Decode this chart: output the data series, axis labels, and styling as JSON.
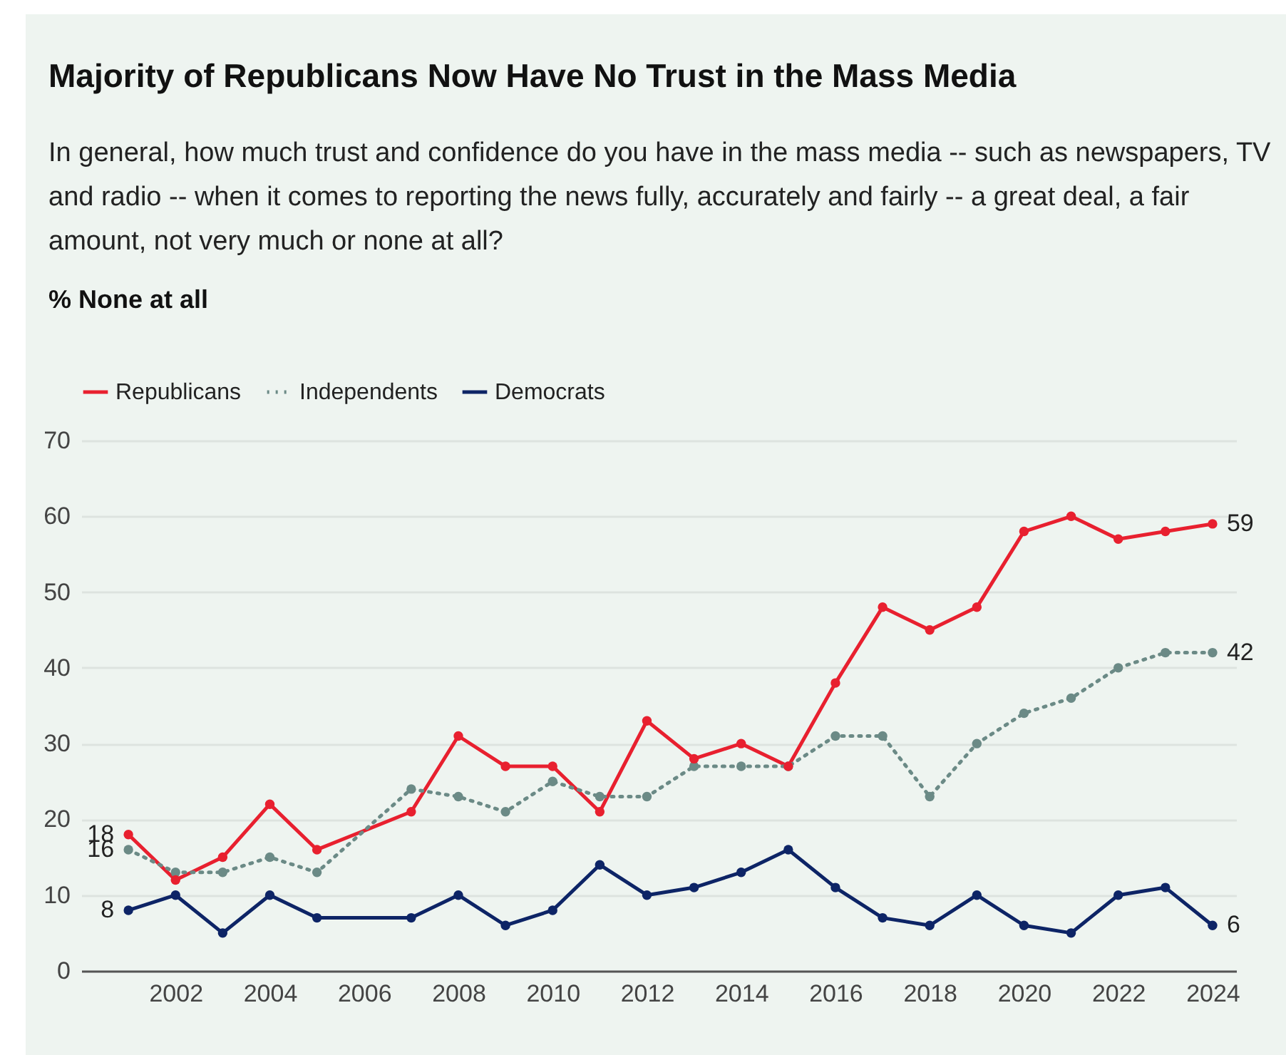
{
  "chart_data": {
    "type": "line",
    "title": "Majority of Republicans Now Have No Trust in the Mass Media",
    "subtitle": "In general, how much trust and confidence do you have in the mass media -- such as newspapers, TV and radio -- when it comes to reporting the news fully, accurately and fairly -- a great deal, a fair amount, not very much or none at all?",
    "ylabel": "% None at all",
    "x": [
      2001,
      2002,
      2003,
      2004,
      2005,
      2007,
      2008,
      2009,
      2010,
      2011,
      2012,
      2013,
      2014,
      2015,
      2016,
      2017,
      2018,
      2019,
      2020,
      2021,
      2022,
      2023,
      2024
    ],
    "series": [
      {
        "name": "Republicans",
        "color": "#e8202f",
        "line_style": "solid",
        "values": [
          18,
          12,
          15,
          22,
          16,
          21,
          31,
          27,
          27,
          21,
          33,
          28,
          30,
          27,
          38,
          48,
          45,
          48,
          58,
          60,
          57,
          58,
          59
        ],
        "value_labels": [
          "18",
          null,
          null,
          null,
          null,
          null,
          null,
          null,
          null,
          null,
          null,
          null,
          null,
          null,
          null,
          null,
          null,
          null,
          null,
          null,
          null,
          null,
          "59"
        ]
      },
      {
        "name": "Independents",
        "color": "#6b8a86",
        "line_style": "dotted",
        "values": [
          16,
          13,
          13,
          15,
          13,
          24,
          23,
          21,
          25,
          23,
          23,
          27,
          27,
          27,
          31,
          31,
          23,
          30,
          34,
          36,
          40,
          42,
          42
        ],
        "value_labels": [
          "16",
          null,
          null,
          null,
          null,
          null,
          null,
          null,
          null,
          null,
          null,
          null,
          null,
          null,
          null,
          null,
          null,
          null,
          null,
          null,
          null,
          null,
          "42"
        ]
      },
      {
        "name": "Democrats",
        "color": "#0d2466",
        "line_style": "solid",
        "values": [
          8,
          10,
          5,
          10,
          7,
          7,
          10,
          6,
          8,
          14,
          10,
          11,
          13,
          16,
          11,
          7,
          6,
          10,
          6,
          5,
          10,
          11,
          6
        ],
        "value_labels": [
          "8",
          null,
          null,
          null,
          null,
          null,
          null,
          null,
          null,
          null,
          null,
          null,
          null,
          null,
          null,
          null,
          null,
          null,
          null,
          null,
          null,
          null,
          "6"
        ]
      }
    ],
    "xlim": [
      2000,
      2024.5
    ],
    "xticks": [
      2002,
      2004,
      2006,
      2008,
      2010,
      2012,
      2014,
      2016,
      2018,
      2020,
      2022,
      2024
    ],
    "ylim": [
      0,
      70
    ],
    "yticks": [
      0,
      10,
      20,
      30,
      40,
      50,
      60,
      70
    ],
    "grid": "y",
    "legend": "top left",
    "marker": "circle"
  }
}
